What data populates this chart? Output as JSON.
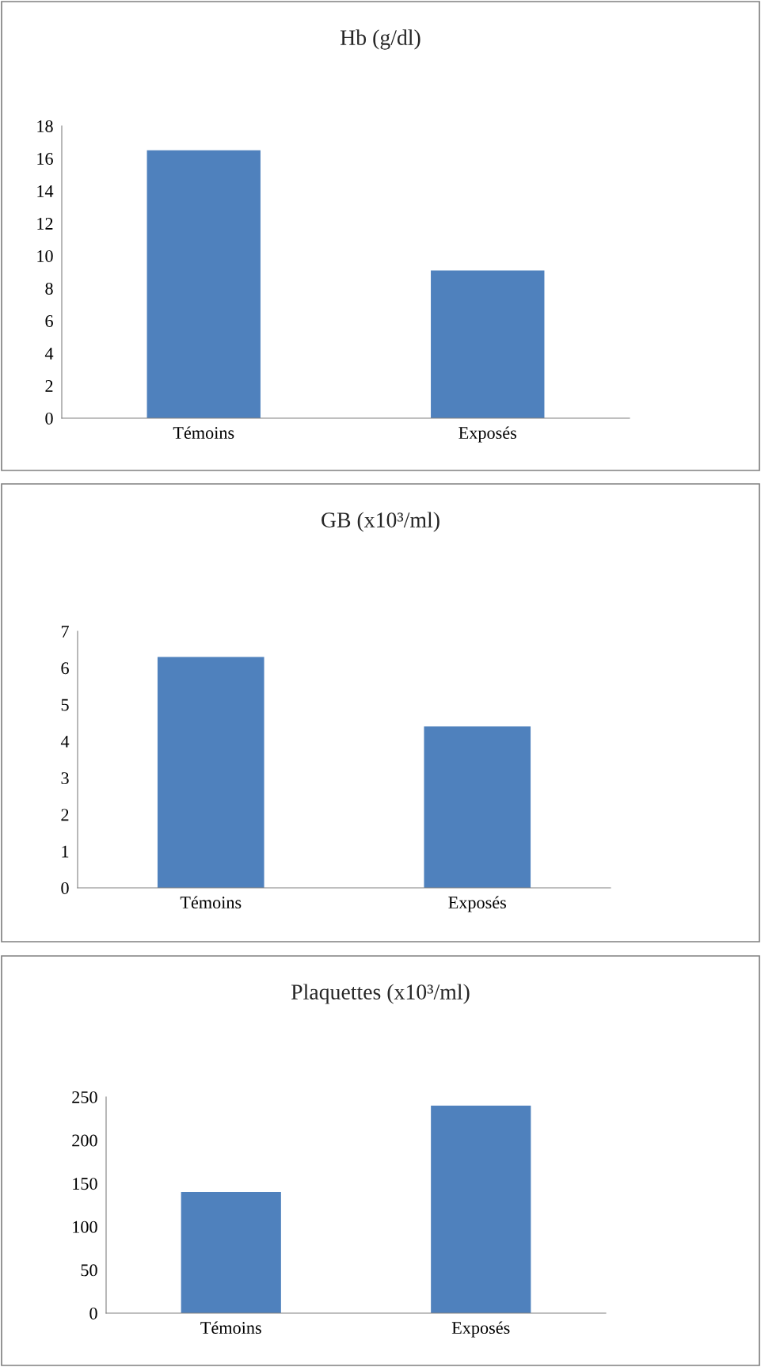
{
  "chart_data": [
    {
      "type": "bar",
      "title": "Hb (g/dl)",
      "categories": [
        "Témoins",
        "Exposés"
      ],
      "values": [
        16.5,
        9.1
      ],
      "color": "#4f81bd",
      "ylim": [
        0,
        18
      ],
      "yticks": [
        0,
        2,
        4,
        6,
        8,
        10,
        12,
        14,
        16,
        18
      ],
      "grid": false,
      "legend": false
    },
    {
      "type": "bar",
      "title": "GB (x10³/ml)",
      "categories": [
        "Témoins",
        "Exposés"
      ],
      "values": [
        6.3,
        4.4
      ],
      "color": "#4f81bd",
      "ylim": [
        0,
        7
      ],
      "yticks": [
        0,
        1,
        2,
        3,
        4,
        5,
        6,
        7
      ],
      "grid": false,
      "legend": false
    },
    {
      "type": "bar",
      "title": "Plaquettes (x10³/ml)",
      "categories": [
        "Témoins",
        "Exposés"
      ],
      "values": [
        140,
        240
      ],
      "color": "#4f81bd",
      "ylim": [
        0,
        250
      ],
      "yticks": [
        0,
        50,
        100,
        150,
        200,
        250
      ],
      "grid": false,
      "legend": false
    }
  ]
}
